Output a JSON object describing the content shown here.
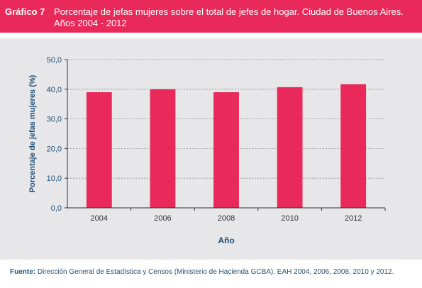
{
  "header": {
    "figure_label": "Gráfico 7",
    "title_line1": "Porcentaje de jefas mujeres sobre el total de jefes de hogar. Ciudad de Buenos Aires.",
    "title_line2": "Años 2004 - 2012"
  },
  "chart_data": {
    "type": "bar",
    "categories": [
      "2004",
      "2006",
      "2008",
      "2010",
      "2012"
    ],
    "values": [
      39.0,
      40.0,
      39.0,
      40.7,
      41.7
    ],
    "xlabel": "Año",
    "ylabel": "Porcentaje de jefas mujeres (%)",
    "ylim": [
      0,
      50
    ],
    "yticks": [
      "0,0",
      "10,0",
      "20,0",
      "30,0",
      "40,0",
      "50,0"
    ],
    "grid": true,
    "bar_color": "#e8295a"
  },
  "footer": {
    "source_label": "Fuente:",
    "source_text": " Dirección General de Estadística y Censos (Ministerio de Hacienda GCBA). EAH 2004, 2006, 2008, 2010 y 2012."
  },
  "colors": {
    "accent": "#e8295a",
    "panel": "#e7e7e9",
    "axis_text": "#1e4f78"
  }
}
